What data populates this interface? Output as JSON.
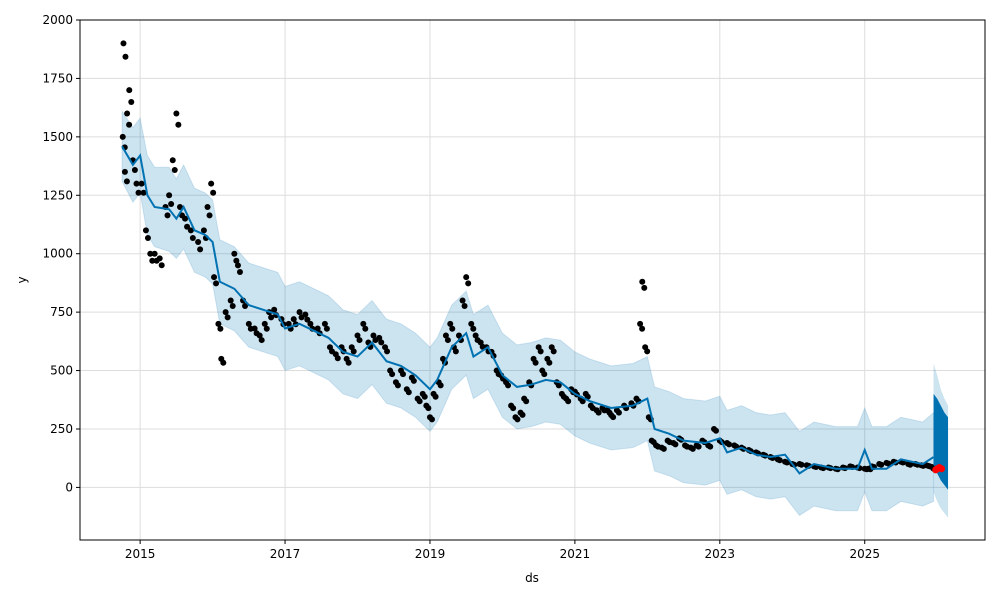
{
  "chart_data": {
    "type": "line",
    "title": "",
    "xlabel": "ds",
    "ylabel": "y",
    "xlim": [
      2014.17,
      2026.66
    ],
    "ylim": [
      -225,
      2000
    ],
    "grid": true,
    "x_ticks": [
      2015,
      2017,
      2019,
      2021,
      2023,
      2025
    ],
    "y_ticks": [
      0,
      250,
      500,
      750,
      1000,
      1250,
      1500,
      1750,
      2000
    ],
    "colors": {
      "actual": "#000000",
      "yhat": "#0072B2",
      "band": "#0072B2",
      "future_points": "#ff0000"
    },
    "actual": [
      [
        2014.76,
        1500
      ],
      [
        2014.77,
        1900
      ],
      [
        2014.79,
        1350
      ],
      [
        2014.82,
        1600
      ],
      [
        2014.85,
        1700
      ],
      [
        2014.9,
        1400
      ],
      [
        2014.95,
        1300
      ],
      [
        2015.02,
        1300
      ],
      [
        2015.08,
        1100
      ],
      [
        2015.14,
        1000
      ],
      [
        2015.2,
        1000
      ],
      [
        2015.27,
        980
      ],
      [
        2015.35,
        1200
      ],
      [
        2015.4,
        1250
      ],
      [
        2015.45,
        1400
      ],
      [
        2015.5,
        1600
      ],
      [
        2015.55,
        1200
      ],
      [
        2015.62,
        1150
      ],
      [
        2015.7,
        1100
      ],
      [
        2015.8,
        1050
      ],
      [
        2015.88,
        1100
      ],
      [
        2015.93,
        1200
      ],
      [
        2015.98,
        1300
      ],
      [
        2016.02,
        900
      ],
      [
        2016.08,
        700
      ],
      [
        2016.12,
        550
      ],
      [
        2016.18,
        750
      ],
      [
        2016.25,
        800
      ],
      [
        2016.3,
        1000
      ],
      [
        2016.35,
        950
      ],
      [
        2016.42,
        800
      ],
      [
        2016.5,
        700
      ],
      [
        2016.58,
        680
      ],
      [
        2016.65,
        650
      ],
      [
        2016.72,
        700
      ],
      [
        2016.78,
        750
      ],
      [
        2016.85,
        760
      ],
      [
        2016.95,
        720
      ],
      [
        2017.05,
        700
      ],
      [
        2017.12,
        720
      ],
      [
        2017.2,
        750
      ],
      [
        2017.28,
        740
      ],
      [
        2017.35,
        700
      ],
      [
        2017.45,
        680
      ],
      [
        2017.55,
        700
      ],
      [
        2017.62,
        600
      ],
      [
        2017.7,
        570
      ],
      [
        2017.78,
        600
      ],
      [
        2017.85,
        550
      ],
      [
        2017.92,
        600
      ],
      [
        2018.0,
        650
      ],
      [
        2018.08,
        700
      ],
      [
        2018.15,
        620
      ],
      [
        2018.22,
        650
      ],
      [
        2018.3,
        640
      ],
      [
        2018.38,
        600
      ],
      [
        2018.45,
        500
      ],
      [
        2018.53,
        450
      ],
      [
        2018.6,
        500
      ],
      [
        2018.68,
        420
      ],
      [
        2018.75,
        470
      ],
      [
        2018.83,
        380
      ],
      [
        2018.9,
        400
      ],
      [
        2018.95,
        350
      ],
      [
        2019.0,
        300
      ],
      [
        2019.05,
        400
      ],
      [
        2019.12,
        450
      ],
      [
        2019.18,
        550
      ],
      [
        2019.22,
        650
      ],
      [
        2019.28,
        700
      ],
      [
        2019.33,
        600
      ],
      [
        2019.4,
        650
      ],
      [
        2019.45,
        800
      ],
      [
        2019.5,
        900
      ],
      [
        2019.57,
        700
      ],
      [
        2019.63,
        650
      ],
      [
        2019.7,
        620
      ],
      [
        2019.78,
        600
      ],
      [
        2019.85,
        580
      ],
      [
        2019.92,
        500
      ],
      [
        2019.98,
        480
      ],
      [
        2020.05,
        450
      ],
      [
        2020.12,
        350
      ],
      [
        2020.18,
        300
      ],
      [
        2020.25,
        320
      ],
      [
        2020.3,
        380
      ],
      [
        2020.37,
        450
      ],
      [
        2020.43,
        550
      ],
      [
        2020.5,
        600
      ],
      [
        2020.55,
        500
      ],
      [
        2020.62,
        550
      ],
      [
        2020.68,
        600
      ],
      [
        2020.75,
        450
      ],
      [
        2020.82,
        400
      ],
      [
        2020.88,
        380
      ],
      [
        2020.95,
        420
      ],
      [
        2021.0,
        410
      ],
      [
        2021.08,
        380
      ],
      [
        2021.15,
        400
      ],
      [
        2021.22,
        350
      ],
      [
        2021.3,
        330
      ],
      [
        2021.38,
        340
      ],
      [
        2021.45,
        330
      ],
      [
        2021.5,
        310
      ],
      [
        2021.58,
        330
      ],
      [
        2021.68,
        350
      ],
      [
        2021.78,
        360
      ],
      [
        2021.85,
        380
      ],
      [
        2021.9,
        700
      ],
      [
        2021.93,
        880
      ],
      [
        2021.97,
        600
      ],
      [
        2022.02,
        300
      ],
      [
        2022.06,
        200
      ],
      [
        2022.12,
        180
      ],
      [
        2022.2,
        170
      ],
      [
        2022.28,
        200
      ],
      [
        2022.36,
        190
      ],
      [
        2022.44,
        210
      ],
      [
        2022.52,
        180
      ],
      [
        2022.6,
        170
      ],
      [
        2022.68,
        180
      ],
      [
        2022.76,
        200
      ],
      [
        2022.84,
        180
      ],
      [
        2022.92,
        250
      ],
      [
        2023.0,
        200
      ],
      [
        2023.1,
        190
      ],
      [
        2023.2,
        180
      ],
      [
        2023.3,
        170
      ],
      [
        2023.4,
        160
      ],
      [
        2023.5,
        150
      ],
      [
        2023.6,
        140
      ],
      [
        2023.7,
        130
      ],
      [
        2023.8,
        120
      ],
      [
        2023.9,
        110
      ],
      [
        2024.0,
        100
      ],
      [
        2024.1,
        100
      ],
      [
        2024.2,
        95
      ],
      [
        2024.3,
        90
      ],
      [
        2024.4,
        85
      ],
      [
        2024.5,
        85
      ],
      [
        2024.6,
        80
      ],
      [
        2024.7,
        85
      ],
      [
        2024.8,
        90
      ],
      [
        2024.9,
        85
      ],
      [
        2025.0,
        80
      ],
      [
        2025.05,
        80
      ],
      [
        2025.1,
        90
      ],
      [
        2025.2,
        100
      ],
      [
        2025.3,
        105
      ],
      [
        2025.4,
        110
      ],
      [
        2025.5,
        110
      ],
      [
        2025.6,
        100
      ],
      [
        2025.7,
        100
      ],
      [
        2025.78,
        95
      ],
      [
        2025.85,
        95
      ],
      [
        2025.9,
        90
      ],
      [
        2025.95,
        80
      ]
    ],
    "future_actual": [
      [
        2025.98,
        75
      ],
      [
        2026.0,
        80
      ],
      [
        2026.03,
        85
      ],
      [
        2026.06,
        80
      ]
    ],
    "forecast": {
      "x": [
        2014.75,
        2014.9,
        2015.0,
        2015.1,
        2015.2,
        2015.4,
        2015.5,
        2015.6,
        2015.75,
        2015.9,
        2016.0,
        2016.1,
        2016.3,
        2016.5,
        2016.7,
        2016.9,
        2017.0,
        2017.2,
        2017.4,
        2017.6,
        2017.8,
        2018.0,
        2018.2,
        2018.4,
        2018.6,
        2018.8,
        2019.0,
        2019.1,
        2019.3,
        2019.5,
        2019.6,
        2019.8,
        2020.0,
        2020.2,
        2020.4,
        2020.6,
        2020.8,
        2021.0,
        2021.2,
        2021.5,
        2021.8,
        2022.0,
        2022.1,
        2022.3,
        2022.5,
        2022.8,
        2023.0,
        2023.1,
        2023.3,
        2023.5,
        2023.7,
        2023.9,
        2024.1,
        2024.3,
        2024.6,
        2024.9,
        2025.0,
        2025.1,
        2025.3,
        2025.5,
        2025.8,
        2025.95
      ],
      "yhat": [
        1460,
        1380,
        1420,
        1250,
        1200,
        1190,
        1150,
        1200,
        1100,
        1080,
        1050,
        880,
        850,
        780,
        760,
        740,
        680,
        700,
        670,
        640,
        580,
        560,
        620,
        540,
        520,
        480,
        420,
        460,
        600,
        660,
        560,
        600,
        480,
        430,
        440,
        460,
        450,
        400,
        370,
        340,
        350,
        380,
        250,
        230,
        200,
        190,
        210,
        150,
        170,
        140,
        130,
        140,
        60,
        100,
        80,
        80,
        160,
        80,
        80,
        120,
        100,
        130
      ],
      "yhat_lower": [
        1310,
        1220,
        1260,
        1080,
        1030,
        1010,
        980,
        1020,
        920,
        900,
        870,
        700,
        670,
        600,
        580,
        560,
        500,
        520,
        490,
        460,
        400,
        380,
        440,
        360,
        340,
        300,
        240,
        280,
        420,
        480,
        380,
        420,
        300,
        250,
        260,
        280,
        270,
        220,
        190,
        160,
        170,
        200,
        70,
        50,
        20,
        10,
        30,
        -30,
        -10,
        -40,
        -50,
        -40,
        -120,
        -80,
        -100,
        -100,
        -20,
        -100,
        -100,
        -60,
        -80,
        -60
      ],
      "yhat_upper": [
        1610,
        1540,
        1580,
        1420,
        1370,
        1370,
        1320,
        1380,
        1280,
        1260,
        1230,
        1060,
        1030,
        960,
        940,
        920,
        860,
        880,
        850,
        820,
        760,
        740,
        800,
        720,
        700,
        660,
        600,
        640,
        780,
        840,
        740,
        780,
        660,
        610,
        620,
        640,
        630,
        580,
        550,
        520,
        530,
        560,
        430,
        410,
        380,
        370,
        390,
        330,
        350,
        320,
        310,
        320,
        240,
        280,
        260,
        260,
        340,
        260,
        260,
        300,
        280,
        320
      ]
    },
    "future_forecast": {
      "x": [
        2025.95,
        2026.0,
        2026.05,
        2026.1,
        2026.15
      ],
      "yhat_lower": [
        100,
        60,
        30,
        10,
        -10
      ],
      "yhat_upper": [
        400,
        380,
        350,
        320,
        300
      ],
      "band_lower": [
        -20,
        -60,
        -90,
        -110,
        -130
      ],
      "band_upper": [
        530,
        480,
        420,
        380,
        350
      ]
    }
  }
}
